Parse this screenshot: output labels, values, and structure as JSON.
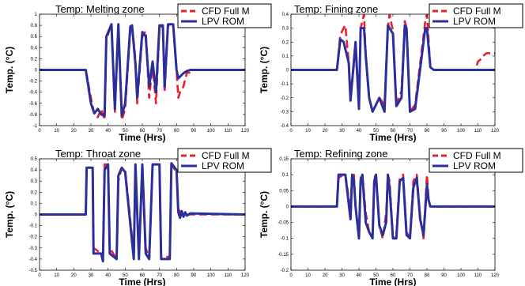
{
  "colors": {
    "cfd": "#e8202a",
    "lpv": "#2b2f9b",
    "axis": "#000000"
  },
  "chart_data": [
    {
      "type": "line",
      "title": "Temp: Melting zone",
      "xlabel": "Time (Hrs)",
      "ylabel": "Temp. (°C)",
      "xlim": [
        0,
        120
      ],
      "ylim": [
        -1,
        1
      ],
      "xticks": [
        0,
        10,
        20,
        30,
        40,
        50,
        60,
        70,
        80,
        90,
        100,
        110,
        120
      ],
      "yticks": [
        -1,
        -0.8,
        -0.6,
        -0.4,
        -0.2,
        0,
        0.2,
        0.4,
        0.6,
        0.8,
        1
      ],
      "xtick_labels": [
        "0",
        "10",
        "20",
        "30",
        "40",
        "50",
        "60",
        "70",
        "80",
        "90",
        "100",
        "110",
        "120"
      ],
      "ytick_labels": [
        "-1",
        "-0.8",
        "-0.6",
        "-0.4",
        "-0.2",
        "0",
        "0.2",
        "0.4",
        "0.6",
        "0.8",
        "1"
      ],
      "legend": [
        "CFD Full M",
        "LPV ROM"
      ],
      "legend_position": "top-right",
      "series": [
        {
          "name": "CFD Full M",
          "style": "dashed",
          "x": [
            0,
            27,
            30,
            32,
            34,
            36,
            38,
            39,
            42,
            44,
            46,
            48,
            50,
            53,
            54,
            56,
            57,
            60,
            62,
            64,
            66,
            68,
            70,
            72,
            73,
            75,
            78,
            80,
            81,
            82,
            84,
            86,
            88
          ],
          "y": [
            0,
            0,
            -0.5,
            -0.8,
            -0.85,
            -0.7,
            -0.9,
            0.55,
            0.82,
            -0.75,
            0.82,
            -0.9,
            -0.7,
            0.7,
            0.8,
            0.2,
            -0.6,
            0.6,
            0.7,
            -0.5,
            0.1,
            -0.6,
            0.75,
            0.8,
            -0.4,
            0.8,
            0.8,
            0,
            -0.5,
            -0.4,
            -0.3,
            -0.05,
            -0.05
          ]
        },
        {
          "name": "LPV ROM",
          "style": "solid",
          "x": [
            0,
            27,
            30,
            32,
            34,
            36,
            38,
            39,
            42,
            44,
            46,
            48,
            50,
            53,
            54,
            56,
            57,
            60,
            62,
            64,
            66,
            68,
            70,
            72,
            73,
            75,
            78,
            80,
            81,
            82,
            84,
            86,
            88,
            92,
            120
          ],
          "y": [
            0,
            0,
            -0.6,
            -0.78,
            -0.7,
            -0.8,
            -0.82,
            0.6,
            0.82,
            -0.7,
            0.82,
            -0.82,
            -0.6,
            0.78,
            0.8,
            0.1,
            -0.5,
            0.68,
            0.6,
            -0.3,
            0.15,
            -0.4,
            0.8,
            0.8,
            -0.3,
            0.82,
            0.82,
            0,
            -0.15,
            -0.12,
            -0.06,
            -0.02,
            0,
            0,
            0
          ]
        }
      ]
    },
    {
      "type": "line",
      "title": "Temp: Fining zone",
      "xlabel": "Time (Hrs)",
      "ylabel": "Temp. (°C)",
      "xlim": [
        0,
        120
      ],
      "ylim": [
        -0.4,
        0.4
      ],
      "xticks": [
        0,
        10,
        20,
        30,
        40,
        50,
        60,
        70,
        80,
        90,
        100,
        110,
        120
      ],
      "yticks": [
        -0.4,
        -0.3,
        -0.2,
        -0.1,
        0,
        0.1,
        0.2,
        0.3,
        0.4
      ],
      "xtick_labels": [
        "0",
        "10",
        "20",
        "30",
        "40",
        "50",
        "60",
        "70",
        "80",
        "90",
        "100",
        "110",
        "120"
      ],
      "ytick_labels": [
        "-0.4",
        "-0.3",
        "-0.2",
        "-0.1",
        "0",
        "0.1",
        "0.2",
        "0.3",
        "0.4"
      ],
      "legend": [
        "CFD Full M",
        "LPV ROM"
      ],
      "legend_position": "top-right",
      "series": [
        {
          "name": "CFD Full M",
          "style": "dashed",
          "x": [
            0,
            27,
            29,
            31,
            32,
            34,
            35,
            38,
            40,
            41,
            43,
            44,
            46,
            48,
            52,
            55,
            57,
            58,
            60,
            62,
            65,
            67,
            68,
            70,
            73,
            79,
            80,
            82,
            84,
            90,
            95,
            100,
            108,
            109,
            110,
            112,
            113,
            115,
            120
          ],
          "y": [
            0,
            0,
            0.25,
            0.3,
            0.32,
            0.05,
            -0.2,
            0.15,
            -0.25,
            0.3,
            0.4,
            0.1,
            -0.2,
            -0.3,
            -0.2,
            -0.25,
            0.3,
            0.4,
            0.28,
            -0.25,
            -0.15,
            0.35,
            0.3,
            -0.3,
            -0.25,
            0.35,
            0.4,
            0.02,
            0,
            0,
            0,
            0,
            0,
            0.02,
            0.06,
            0.08,
            0.1,
            0.12,
            0.12
          ]
        },
        {
          "name": "LPV ROM",
          "style": "solid",
          "x": [
            0,
            27,
            29,
            31,
            32,
            34,
            35,
            38,
            40,
            41,
            43,
            44,
            46,
            48,
            52,
            55,
            57,
            58,
            60,
            62,
            65,
            67,
            68,
            70,
            73,
            79,
            80,
            82,
            84,
            90,
            120
          ],
          "y": [
            0,
            0,
            0.22,
            0.2,
            0.15,
            0.05,
            -0.22,
            0.2,
            -0.28,
            0.3,
            0.3,
            0.1,
            -0.2,
            -0.3,
            -0.2,
            -0.3,
            0.32,
            0.3,
            0.26,
            -0.26,
            -0.2,
            0.32,
            0.3,
            -0.3,
            -0.28,
            0.3,
            0.3,
            0.02,
            0,
            0,
            0
          ]
        }
      ]
    },
    {
      "type": "line",
      "title": "Temp: Throat zone",
      "xlabel": "Time (Hrs)",
      "ylabel": "Temp. (°C)",
      "xlim": [
        0,
        120
      ],
      "ylim": [
        -0.5,
        0.5
      ],
      "xticks": [
        0,
        10,
        20,
        30,
        40,
        50,
        60,
        70,
        80,
        90,
        100,
        110,
        120
      ],
      "yticks": [
        -0.5,
        -0.4,
        -0.3,
        -0.2,
        -0.1,
        0,
        0.1,
        0.2,
        0.3,
        0.4,
        0.5
      ],
      "xtick_labels": [
        "0",
        "10",
        "20",
        "30",
        "40",
        "50",
        "60",
        "70",
        "80",
        "90",
        "100",
        "110",
        "120"
      ],
      "ytick_labels": [
        "-0.5",
        "-0.4",
        "-0.3",
        "-0.2",
        "-0.1",
        "0",
        "0.1",
        "0.2",
        "0.3",
        "0.4",
        "0.5"
      ],
      "legend": [
        "CFD Full M",
        "LPV ROM"
      ],
      "legend_position": "top-right",
      "series": [
        {
          "name": "CFD Full M",
          "style": "dashed",
          "x": [
            0,
            27,
            27.5,
            31,
            31.5,
            36,
            37,
            38,
            40,
            41,
            45,
            46,
            48,
            50,
            55,
            56,
            58,
            60,
            62,
            64,
            66,
            70,
            71,
            76,
            77,
            80,
            81,
            83,
            86,
            120
          ],
          "y": [
            0,
            0,
            0.42,
            0.42,
            -0.3,
            -0.35,
            -0.4,
            0.45,
            0.45,
            -0.3,
            -0.4,
            0.3,
            0.42,
            0.4,
            -0.35,
            0.45,
            -0.38,
            0.45,
            -0.3,
            -0.4,
            0.45,
            0.45,
            -0.38,
            -0.38,
            0.45,
            0.38,
            0.05,
            0.0,
            0.0,
            0.0
          ]
        },
        {
          "name": "LPV ROM",
          "style": "solid",
          "x": [
            0,
            27,
            27.5,
            31,
            31.5,
            36,
            37,
            38,
            40,
            41,
            45,
            46,
            48,
            50,
            55,
            56,
            58,
            60,
            62,
            64,
            66,
            70,
            71,
            76,
            77,
            80,
            81,
            82,
            83,
            84,
            85,
            86,
            88,
            120
          ],
          "y": [
            0,
            0,
            0.42,
            0.42,
            -0.35,
            -0.35,
            -0.42,
            0.4,
            0.45,
            -0.35,
            -0.4,
            0.35,
            0.42,
            0.38,
            -0.4,
            0.45,
            -0.4,
            0.45,
            -0.35,
            -0.4,
            0.45,
            0.45,
            -0.4,
            -0.4,
            0.46,
            0.4,
            0.02,
            -0.03,
            0.03,
            -0.02,
            0.02,
            -0.01,
            0.01,
            0.0
          ]
        }
      ]
    },
    {
      "type": "line",
      "title": "Temp: Refining zone",
      "xlabel": "Time (Hrs)",
      "ylabel": "Temp. (°C)",
      "xlim": [
        0,
        120
      ],
      "ylim": [
        -0.2,
        0.15
      ],
      "xticks": [
        0,
        10,
        20,
        30,
        40,
        50,
        60,
        70,
        80,
        90,
        100,
        110,
        120
      ],
      "yticks": [
        -0.2,
        -0.15,
        -0.1,
        -0.05,
        0,
        0.05,
        0.1,
        0.15
      ],
      "xtick_labels": [
        "0",
        "10",
        "20",
        "30",
        "40",
        "50",
        "60",
        "70",
        "80",
        "90",
        "100",
        "110",
        "120"
      ],
      "ytick_labels": [
        "-0.2",
        "-0.15",
        "-0.1",
        "-0.05",
        "0",
        "0.05",
        "0.1",
        "0.15"
      ],
      "legend": [
        "CFD Full M",
        "LPV ROM"
      ],
      "legend_position": "top-right",
      "series": [
        {
          "name": "CFD Full M",
          "style": "dashed",
          "x": [
            0,
            27,
            28,
            31,
            32,
            35,
            36,
            37,
            38,
            40,
            41,
            42,
            44,
            46,
            48,
            49,
            50,
            52,
            54,
            56,
            57,
            58,
            60,
            62,
            64,
            66,
            68,
            70,
            72,
            74,
            76,
            78,
            80,
            81,
            82,
            84,
            120
          ],
          "y": [
            0,
            0,
            0.09,
            0.1,
            0.1,
            -0.01,
            0.1,
            0.1,
            0.0,
            -0.1,
            0.09,
            0.1,
            -0.02,
            -0.08,
            -0.09,
            0.09,
            0.1,
            -0.06,
            -0.1,
            -0.02,
            0.1,
            0.08,
            -0.1,
            -0.09,
            0.09,
            0.1,
            -0.08,
            -0.1,
            0.08,
            0.1,
            -0.03,
            -0.1,
            0.1,
            0.02,
            0.0,
            0.0,
            0.0
          ]
        },
        {
          "name": "LPV ROM",
          "style": "solid",
          "x": [
            0,
            27,
            28,
            31,
            32,
            35,
            36,
            37,
            38,
            40,
            41,
            42,
            44,
            46,
            48,
            49,
            50,
            52,
            54,
            56,
            57,
            58,
            60,
            62,
            64,
            66,
            68,
            70,
            72,
            74,
            76,
            78,
            80,
            81,
            82,
            84,
            120
          ],
          "y": [
            0,
            0,
            0.1,
            0.1,
            0.1,
            -0.04,
            0.1,
            0.08,
            0.0,
            -0.1,
            0.08,
            0.1,
            -0.05,
            -0.08,
            -0.1,
            0.08,
            0.1,
            -0.06,
            -0.09,
            -0.05,
            0.1,
            0.06,
            -0.1,
            -0.1,
            0.08,
            0.09,
            -0.09,
            -0.1,
            0.06,
            0.09,
            -0.04,
            -0.09,
            0.07,
            0.02,
            0.0,
            0.0,
            0.0
          ]
        }
      ]
    }
  ]
}
